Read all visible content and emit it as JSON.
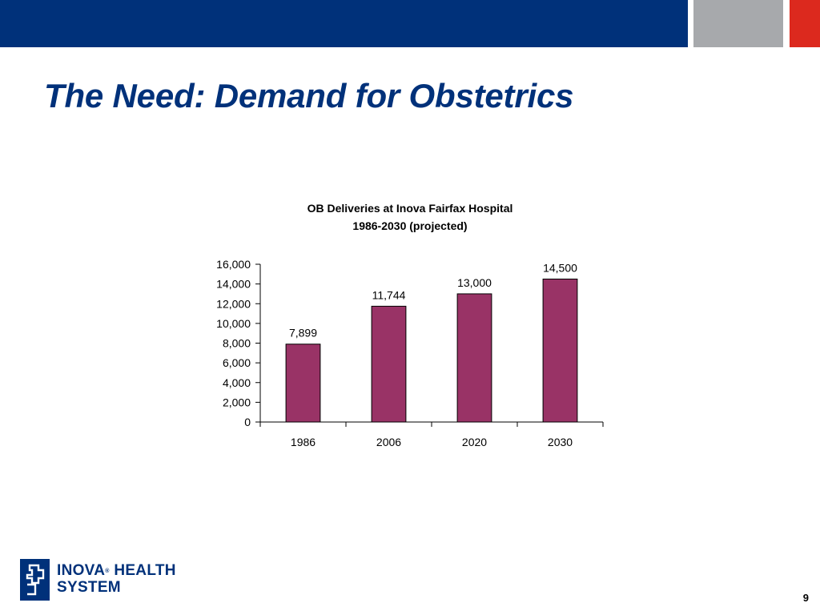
{
  "slide": {
    "title": "The Need:  Demand for Obstetrics",
    "page_number": "9"
  },
  "logo": {
    "line1": "INOVA",
    "registered": "®",
    "line1b": " HEALTH",
    "line2": "SYSTEM"
  },
  "colors": {
    "brand_blue": "#00317a",
    "brand_gray": "#a7a9ac",
    "brand_red": "#dc291e",
    "bar_fill": "#993366"
  },
  "chart_data": {
    "type": "bar",
    "title": "OB Deliveries at Inova Fairfax Hospital",
    "subtitle": "1986-2030 (projected)",
    "categories": [
      "1986",
      "2006",
      "2020",
      "2030"
    ],
    "values": [
      7899,
      11744,
      13000,
      14500
    ],
    "data_labels": [
      "7,899",
      "11,744",
      "13,000",
      "14,500"
    ],
    "ylim": [
      0,
      16000
    ],
    "yticks": [
      0,
      2000,
      4000,
      6000,
      8000,
      10000,
      12000,
      14000,
      16000
    ],
    "ytick_labels": [
      "0",
      "2,000",
      "4,000",
      "6,000",
      "8,000",
      "10,000",
      "12,000",
      "14,000",
      "16,000"
    ],
    "xlabel": "",
    "ylabel": "",
    "grid": false,
    "legend": "none"
  }
}
